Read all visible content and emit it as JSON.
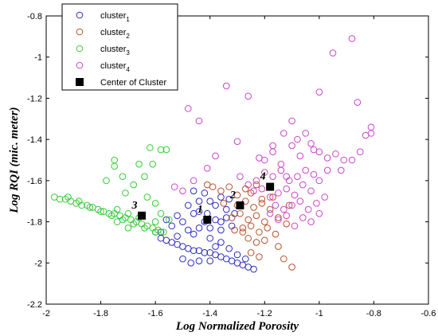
{
  "chart_data": {
    "type": "scatter",
    "xlabel": "Log Normalized Porosity",
    "ylabel": "Log RQI (mic. meter)",
    "xlim": [
      -2,
      -0.6
    ],
    "ylim": [
      -2.2,
      -0.8
    ],
    "xticks": [
      "-2",
      "-1.8",
      "-1.6",
      "-1.4",
      "-1.2",
      "-1",
      "-0.8",
      "-0.6"
    ],
    "yticks": [
      "-2.2",
      "-2",
      "-1.8",
      "-1.6",
      "-1.4",
      "-1.2",
      "-1",
      "-0.8"
    ],
    "grid": false,
    "legend_position": "top-left",
    "series": [
      {
        "name": "cluster1",
        "name_base": "cluster",
        "name_sub": "1",
        "color": "#2b2bc8",
        "marker": "circle-open",
        "points": [
          [
            -1.46,
            -1.65
          ],
          [
            -1.44,
            -1.7
          ],
          [
            -1.42,
            -1.66
          ],
          [
            -1.4,
            -1.7
          ],
          [
            -1.38,
            -1.72
          ],
          [
            -1.36,
            -1.68
          ],
          [
            -1.34,
            -1.74
          ],
          [
            -1.48,
            -1.72
          ],
          [
            -1.46,
            -1.76
          ],
          [
            -1.44,
            -1.75
          ],
          [
            -1.42,
            -1.8
          ],
          [
            -1.4,
            -1.83
          ],
          [
            -1.38,
            -1.79
          ],
          [
            -1.36,
            -1.84
          ],
          [
            -1.34,
            -1.78
          ],
          [
            -1.32,
            -1.82
          ],
          [
            -1.5,
            -1.8
          ],
          [
            -1.48,
            -1.84
          ],
          [
            -1.46,
            -1.86
          ],
          [
            -1.52,
            -1.77
          ],
          [
            -1.54,
            -1.82
          ],
          [
            -1.56,
            -1.79
          ],
          [
            -1.58,
            -1.85
          ],
          [
            -1.6,
            -1.85
          ],
          [
            -1.58,
            -1.88
          ],
          [
            -1.56,
            -1.89
          ],
          [
            -1.54,
            -1.9
          ],
          [
            -1.52,
            -1.91
          ],
          [
            -1.5,
            -1.92
          ],
          [
            -1.48,
            -1.93
          ],
          [
            -1.46,
            -1.94
          ],
          [
            -1.44,
            -1.94
          ],
          [
            -1.42,
            -1.95
          ],
          [
            -1.4,
            -1.95
          ],
          [
            -1.38,
            -1.96
          ],
          [
            -1.36,
            -1.97
          ],
          [
            -1.34,
            -1.98
          ],
          [
            -1.32,
            -1.99
          ],
          [
            -1.3,
            -2.0
          ],
          [
            -1.28,
            -2.01
          ],
          [
            -1.26,
            -2.02
          ],
          [
            -1.24,
            -2.03
          ],
          [
            -1.5,
            -1.98
          ],
          [
            -1.47,
            -2.0
          ],
          [
            -1.44,
            -1.99
          ],
          [
            -1.4,
            -1.88
          ],
          [
            -1.36,
            -1.9
          ],
          [
            -1.33,
            -1.93
          ],
          [
            -1.3,
            -1.96
          ],
          [
            -1.27,
            -1.98
          ],
          [
            -1.4,
            -1.99
          ],
          [
            -1.38,
            -1.92
          ],
          [
            -1.52,
            -1.87
          ],
          [
            -1.44,
            -1.83
          ],
          [
            -1.36,
            -1.8
          ],
          [
            -1.41,
            -1.76
          ],
          [
            -1.33,
            -1.69
          ],
          [
            -1.31,
            -1.76
          ]
        ]
      },
      {
        "name": "cluster2",
        "name_base": "cluster",
        "name_sub": "2",
        "color": "#b5502a",
        "marker": "circle-open",
        "points": [
          [
            -1.41,
            -1.62
          ],
          [
            -1.39,
            -1.63
          ],
          [
            -1.36,
            -1.65
          ],
          [
            -1.33,
            -1.63
          ],
          [
            -1.3,
            -1.67
          ],
          [
            -1.27,
            -1.64
          ],
          [
            -1.25,
            -1.66
          ],
          [
            -1.23,
            -1.62
          ],
          [
            -1.3,
            -1.72
          ],
          [
            -1.27,
            -1.7
          ],
          [
            -1.24,
            -1.73
          ],
          [
            -1.21,
            -1.71
          ],
          [
            -1.18,
            -1.74
          ],
          [
            -1.32,
            -1.78
          ],
          [
            -1.29,
            -1.76
          ],
          [
            -1.26,
            -1.79
          ],
          [
            -1.23,
            -1.77
          ],
          [
            -1.2,
            -1.8
          ],
          [
            -1.28,
            -1.83
          ],
          [
            -1.25,
            -1.82
          ],
          [
            -1.22,
            -1.85
          ],
          [
            -1.19,
            -1.83
          ],
          [
            -1.16,
            -1.86
          ],
          [
            -1.26,
            -1.88
          ],
          [
            -1.23,
            -1.9
          ],
          [
            -1.2,
            -1.89
          ],
          [
            -1.15,
            -1.92
          ],
          [
            -1.25,
            -1.95
          ],
          [
            -1.22,
            -1.97
          ],
          [
            -1.13,
            -1.98
          ],
          [
            -1.1,
            -2.02
          ],
          [
            -1.28,
            -1.85
          ],
          [
            -1.31,
            -1.84
          ],
          [
            -1.35,
            -1.71
          ],
          [
            -1.15,
            -1.78
          ],
          [
            -1.12,
            -1.81
          ],
          [
            -1.17,
            -1.68
          ],
          [
            -1.11,
            -1.72
          ],
          [
            -1.21,
            -1.69
          ]
        ]
      },
      {
        "name": "cluster3",
        "name_base": "cluster",
        "name_sub": "3",
        "color": "#33cc33",
        "marker": "circle-open",
        "points": [
          [
            -1.97,
            -1.68
          ],
          [
            -1.95,
            -1.69
          ],
          [
            -1.93,
            -1.69
          ],
          [
            -1.91,
            -1.7
          ],
          [
            -1.89,
            -1.71
          ],
          [
            -1.87,
            -1.72
          ],
          [
            -1.85,
            -1.72
          ],
          [
            -1.83,
            -1.73
          ],
          [
            -1.81,
            -1.74
          ],
          [
            -1.79,
            -1.75
          ],
          [
            -1.77,
            -1.76
          ],
          [
            -1.75,
            -1.76
          ],
          [
            -1.73,
            -1.77
          ],
          [
            -1.71,
            -1.78
          ],
          [
            -1.69,
            -1.79
          ],
          [
            -1.67,
            -1.8
          ],
          [
            -1.65,
            -1.81
          ],
          [
            -1.63,
            -1.82
          ],
          [
            -1.61,
            -1.83
          ],
          [
            -1.59,
            -1.84
          ],
          [
            -1.57,
            -1.85
          ],
          [
            -1.92,
            -1.68
          ],
          [
            -1.88,
            -1.7
          ],
          [
            -1.84,
            -1.73
          ],
          [
            -1.8,
            -1.75
          ],
          [
            -1.76,
            -1.77
          ],
          [
            -1.72,
            -1.79
          ],
          [
            -1.68,
            -1.81
          ],
          [
            -1.64,
            -1.83
          ],
          [
            -1.6,
            -1.85
          ],
          [
            -1.74,
            -1.74
          ],
          [
            -1.7,
            -1.76
          ],
          [
            -1.66,
            -1.78
          ],
          [
            -1.78,
            -1.6
          ],
          [
            -1.75,
            -1.5
          ],
          [
            -1.72,
            -1.58
          ],
          [
            -1.68,
            -1.62
          ],
          [
            -1.64,
            -1.58
          ],
          [
            -1.62,
            -1.44
          ],
          [
            -1.58,
            -1.45
          ],
          [
            -1.56,
            -1.45
          ],
          [
            -1.66,
            -1.52
          ],
          [
            -1.61,
            -1.52
          ],
          [
            -1.71,
            -1.66
          ],
          [
            -1.63,
            -1.68
          ],
          [
            -1.6,
            -1.71
          ],
          [
            -1.75,
            -1.53
          ],
          [
            -1.58,
            -1.76
          ],
          [
            -1.55,
            -1.79
          ],
          [
            -1.7,
            -1.83
          ],
          [
            -1.74,
            -1.8
          ],
          [
            -1.6,
            -1.8
          ]
        ]
      },
      {
        "name": "cluster4",
        "name_base": "cluster",
        "name_sub": "4",
        "color": "#cc44cc",
        "marker": "circle-open",
        "points": [
          [
            -1.29,
            -1.58
          ],
          [
            -1.26,
            -1.62
          ],
          [
            -1.23,
            -1.6
          ],
          [
            -1.2,
            -1.56
          ],
          [
            -1.17,
            -1.58
          ],
          [
            -1.14,
            -1.55
          ],
          [
            -1.11,
            -1.6
          ],
          [
            -1.08,
            -1.58
          ],
          [
            -1.05,
            -1.55
          ],
          [
            -1.02,
            -1.57
          ],
          [
            -1.24,
            -1.65
          ],
          [
            -1.21,
            -1.64
          ],
          [
            -1.18,
            -1.68
          ],
          [
            -1.15,
            -1.66
          ],
          [
            -1.12,
            -1.64
          ],
          [
            -1.09,
            -1.67
          ],
          [
            -1.06,
            -1.62
          ],
          [
            -1.03,
            -1.65
          ],
          [
            -1.0,
            -1.6
          ],
          [
            -0.97,
            -1.55
          ],
          [
            -1.16,
            -1.72
          ],
          [
            -1.13,
            -1.74
          ],
          [
            -1.1,
            -1.72
          ],
          [
            -1.07,
            -1.7
          ],
          [
            -1.04,
            -1.74
          ],
          [
            -1.01,
            -1.71
          ],
          [
            -0.98,
            -1.68
          ],
          [
            -1.18,
            -1.76
          ],
          [
            -1.15,
            -1.79
          ],
          [
            -1.12,
            -1.77
          ],
          [
            -1.09,
            -1.82
          ],
          [
            -1.06,
            -1.78
          ],
          [
            -1.03,
            -1.8
          ],
          [
            -1.0,
            -1.76
          ],
          [
            -1.2,
            -1.5
          ],
          [
            -1.17,
            -1.46
          ],
          [
            -1.14,
            -1.52
          ],
          [
            -1.1,
            -1.43
          ],
          [
            -1.07,
            -1.48
          ],
          [
            -1.03,
            -1.42
          ],
          [
            -1.0,
            -1.46
          ],
          [
            -0.97,
            -1.49
          ],
          [
            -0.94,
            -1.47
          ],
          [
            -0.91,
            -1.5
          ],
          [
            -0.88,
            -1.5
          ],
          [
            -0.85,
            -1.46
          ],
          [
            -0.83,
            -1.38
          ],
          [
            -0.81,
            -1.34
          ],
          [
            -0.81,
            -1.37
          ],
          [
            -0.86,
            -1.22
          ],
          [
            -0.88,
            -0.91
          ],
          [
            -0.95,
            -0.98
          ],
          [
            -1.0,
            -1.17
          ],
          [
            -1.05,
            -1.37
          ],
          [
            -1.1,
            -1.31
          ],
          [
            -1.13,
            -1.37
          ],
          [
            -1.17,
            -1.43
          ],
          [
            -1.22,
            -1.49
          ],
          [
            -1.3,
            -1.41
          ],
          [
            -1.34,
            -1.14
          ],
          [
            -1.26,
            -1.19
          ],
          [
            -1.48,
            -1.25
          ],
          [
            -1.44,
            -1.31
          ],
          [
            -1.46,
            -1.6
          ],
          [
            -1.5,
            -1.65
          ],
          [
            -1.53,
            -1.63
          ],
          [
            -1.38,
            -1.48
          ],
          [
            -1.41,
            -1.54
          ],
          [
            -1.02,
            -1.45
          ],
          [
            -1.08,
            -1.4
          ],
          [
            -0.92,
            -1.55
          ],
          [
            -1.12,
            -1.58
          ]
        ]
      },
      {
        "name": "Center of Cluster",
        "color": "#000000",
        "marker": "square-filled",
        "points": [
          [
            -1.41,
            -1.79
          ],
          [
            -1.29,
            -1.72
          ],
          [
            -1.65,
            -1.77
          ],
          [
            -1.18,
            -1.63
          ]
        ],
        "labels": [
          "1",
          "2",
          "3",
          "4"
        ]
      }
    ]
  }
}
